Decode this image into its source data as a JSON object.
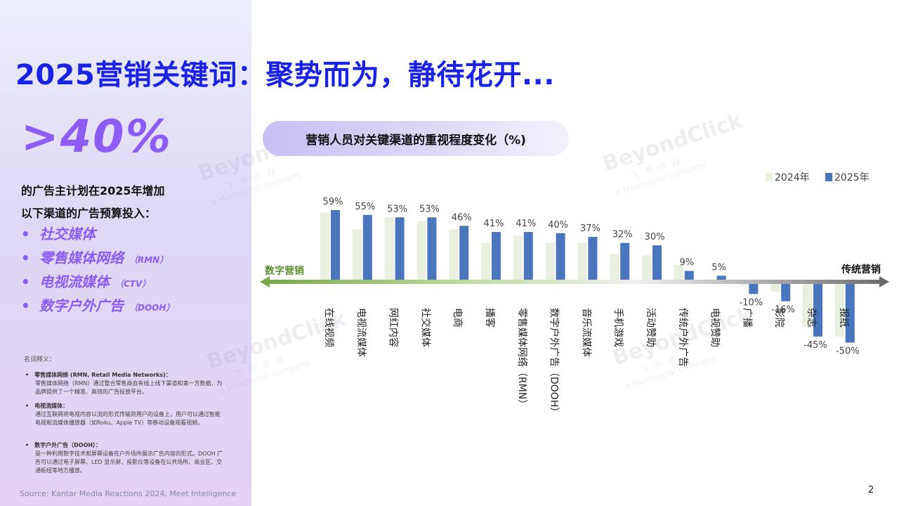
{
  "title": "2025营销关键词：聚势而为，静待花开...",
  "stat": {
    "value": ">40%",
    "line1": "的广告主计划在2025年增加",
    "line2": "以下渠道的广告预算投入："
  },
  "bullets": [
    {
      "label": "社交媒体",
      "abbr": ""
    },
    {
      "label": "零售媒体网络",
      "abbr": "（RMN）"
    },
    {
      "label": "电视流媒体",
      "abbr": "（CTV）"
    },
    {
      "label": "数字户外广告",
      "abbr": "（DOOH）"
    }
  ],
  "glossary": {
    "title": "名词释义：",
    "items": [
      {
        "term": "零售媒体网络 (RMN, Retail Media Networks)：",
        "desc": "零售媒体网络（RMN）通过整合零售商自有线上线下渠道和第一方数据，为品牌提供了一个精准、高效的广告投放平台。"
      },
      {
        "term": "电视流媒体：",
        "desc": "通过互联网将电视内容以流的形式传输到用户的设备上，用户可以通过智能电视和流媒体播放器（如Roku、Apple TV）等移动设备观看视频。"
      },
      {
        "term": "数字户外广告（DOOH）：",
        "desc": "是一种利用数字技术和屏幕设备在户外场所展示广告内容的形式。DOOH 广告可以通过电子屏幕、LED 显示屏、投影仪等设备在公共场所、商业区、交通枢纽等地方播放。"
      }
    ]
  },
  "source": "Source: Kantar Media Reactions 2024, Meet Intelligence",
  "page_number": "2",
  "watermark": {
    "brand": "BeyondClick",
    "cn": "飞书点跃",
    "sub": "a Meetsocial company"
  },
  "colors": {
    "series_2024": "#e8f0df",
    "series_2025": "#4a76be",
    "accent": "#8b5cf6",
    "title": "#1a22e6"
  },
  "chart_data": {
    "type": "bar",
    "title": "营销人员对关键渠道的重视程度变化（%)",
    "categories": [
      "在线视频",
      "电视流媒体",
      "网红内容",
      "社交媒体",
      "电商",
      "播客",
      "零售媒体网络（RMN）",
      "数字户外广告（DOOH）",
      "音乐流媒体",
      "手机游戏",
      "活动赞助",
      "传统户外广告",
      "电视赞助",
      "广播",
      "影院",
      "杂志",
      "报纸"
    ],
    "series": [
      {
        "name": "2024年",
        "values": [
          57,
          43,
          53,
          50,
          43,
          32,
          38,
          32,
          32,
          23,
          22,
          14,
          2,
          -3,
          -8,
          -37,
          -45
        ]
      },
      {
        "name": "2025年",
        "values": [
          59,
          55,
          53,
          53,
          46,
          41,
          41,
          40,
          37,
          32,
          30,
          9,
          5,
          -10,
          -16,
          -45,
          -50
        ]
      }
    ],
    "data_labels": [
      "59%",
      "55%",
      "53%",
      "53%",
      "46%",
      "41%",
      "41%",
      "40%",
      "37%",
      "32%",
      "30%",
      "9%",
      "5%",
      "-10%",
      "-16%",
      "-45%",
      "-50%"
    ],
    "ylim": [
      -55,
      65
    ],
    "axis_left_label": "数字营销",
    "axis_right_label": "传统营销",
    "legend_position": "top-right",
    "grid": false
  }
}
